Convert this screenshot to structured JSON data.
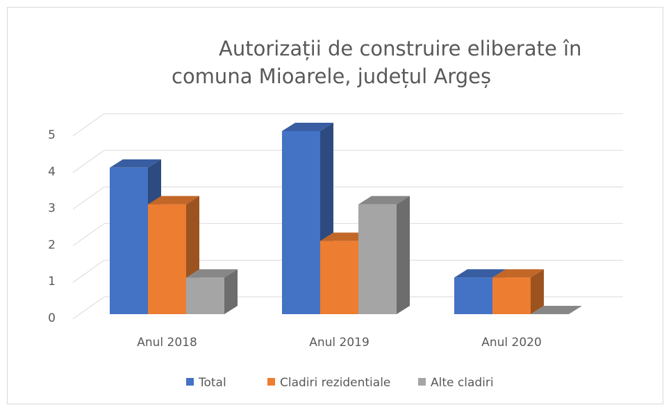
{
  "chart_data": {
    "type": "bar3d",
    "title": [
      "Autorizații de construire eliberate în",
      "comuna Mioarele, județul Argeș"
    ],
    "categories": [
      "Anul 2018",
      "Anul 2019",
      "Anul 2020"
    ],
    "series": [
      {
        "name": "Total",
        "color": "#4472c4",
        "values": [
          4,
          5,
          1
        ]
      },
      {
        "name": "Cladiri rezidentiale",
        "color": "#ed7d31",
        "values": [
          3,
          2,
          1
        ]
      },
      {
        "name": "Alte cladiri",
        "color": "#a5a5a5",
        "values": [
          1,
          3,
          0
        ]
      }
    ],
    "ylim": [
      0,
      5
    ],
    "yticks": [
      0,
      1,
      2,
      3,
      4,
      5
    ],
    "grid": true,
    "legend": "bottom"
  }
}
